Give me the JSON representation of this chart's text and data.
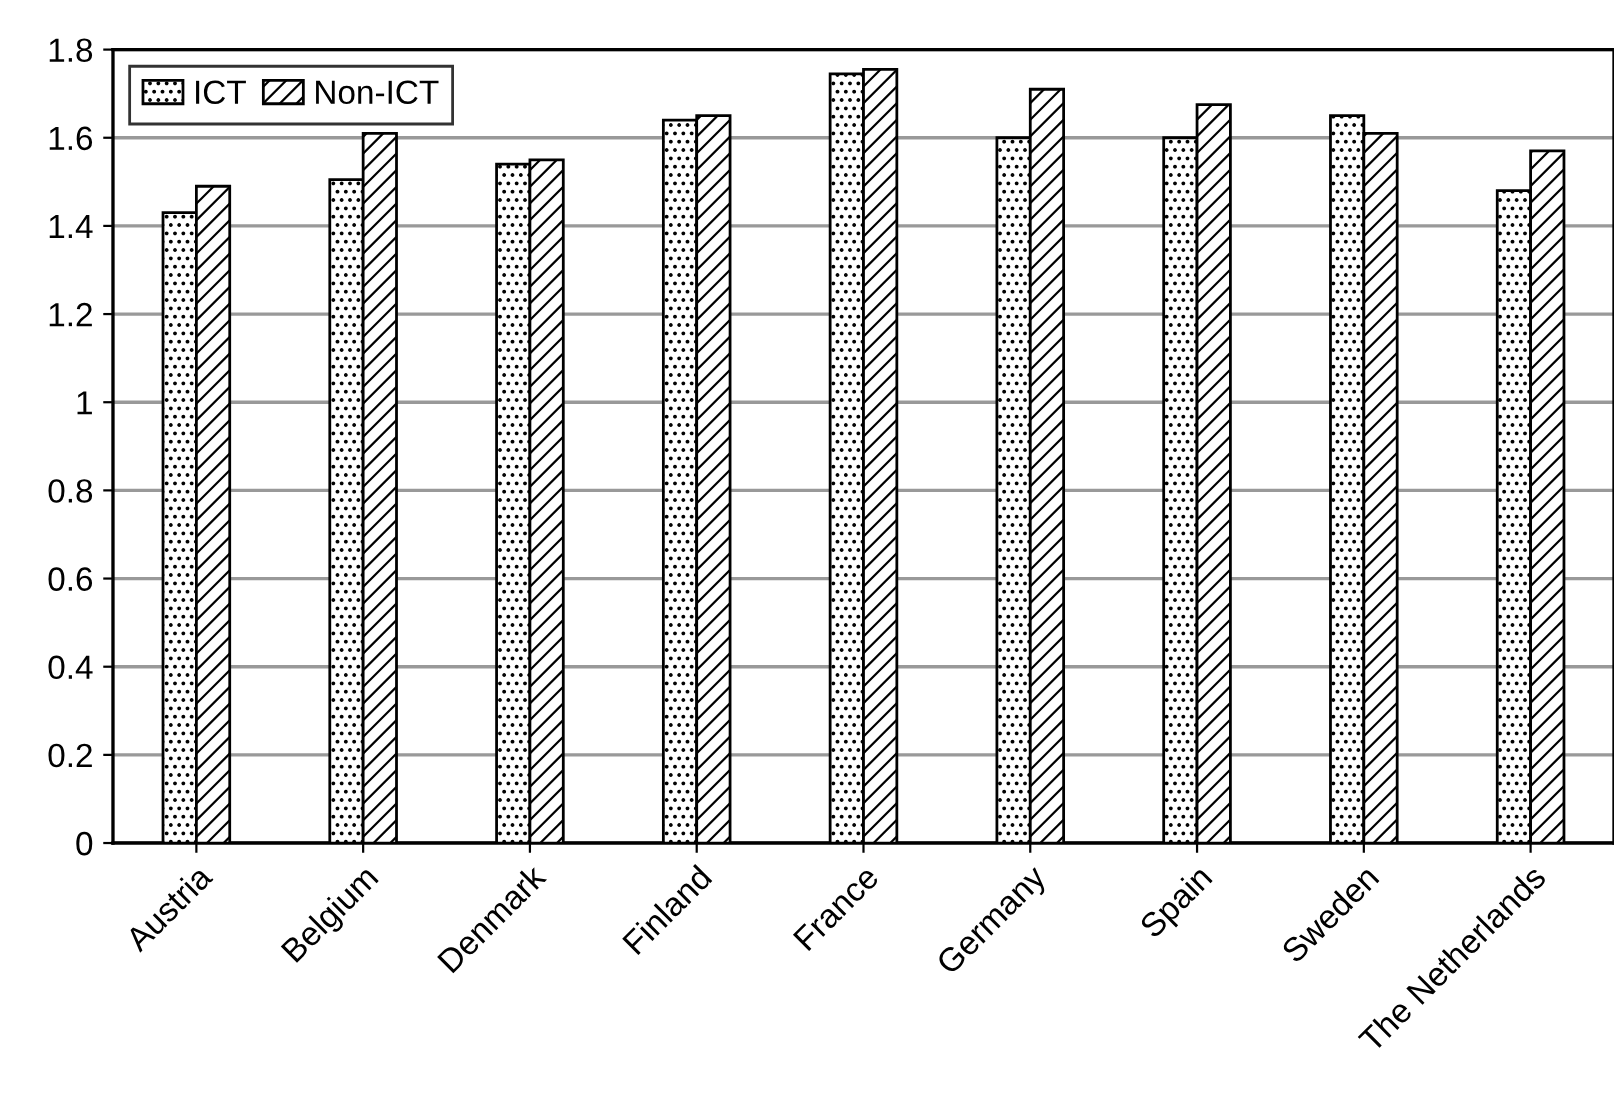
{
  "chart_data": {
    "type": "bar",
    "categories": [
      "Austria",
      "Belgium",
      "Denmark",
      "Finland",
      "France",
      "Germany",
      "Spain",
      "Sweden",
      "The Netherlands"
    ],
    "series": [
      {
        "name": "ICT",
        "color": "#000000",
        "values": [
          1.43,
          1.505,
          1.54,
          1.64,
          1.745,
          1.6,
          1.6,
          1.65,
          1.48
        ]
      },
      {
        "name": "Non-ICT",
        "color": "#000000",
        "values": [
          1.49,
          1.61,
          1.55,
          1.65,
          1.755,
          1.71,
          1.675,
          1.61,
          1.57
        ]
      }
    ],
    "ylim": [
      0,
      1.8
    ],
    "yticks": [
      0,
      0.2,
      0.4,
      0.6,
      0.8,
      1,
      1.2,
      1.4,
      1.6,
      1.8
    ],
    "grid": "y",
    "legend": "top left"
  }
}
